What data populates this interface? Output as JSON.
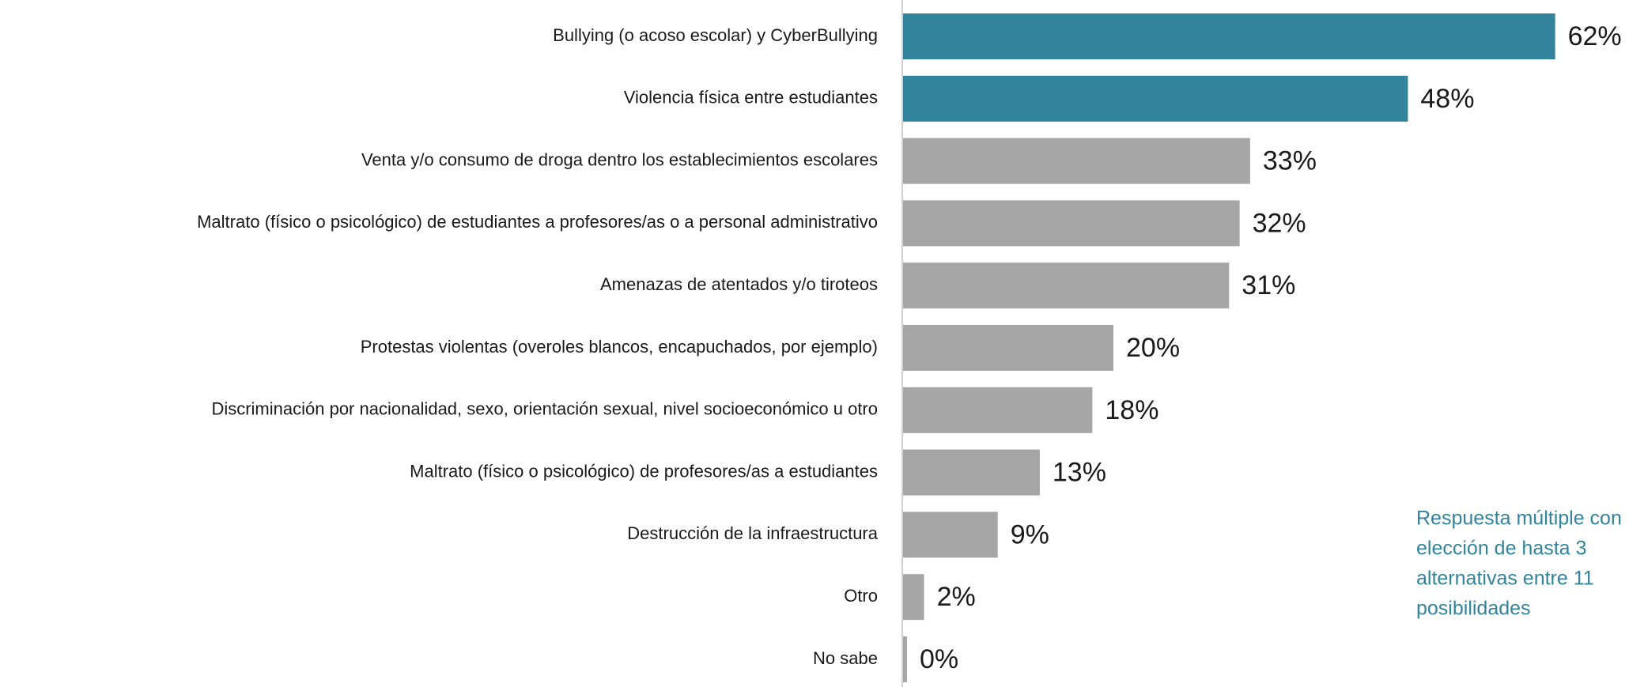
{
  "chart_data": {
    "type": "hbar",
    "categories": [
      "Bullying (o acoso escolar) y CyberBullying",
      "Violencia física entre estudiantes",
      "Venta y/o consumo de droga dentro los establecimientos escolares",
      "Maltrato (físico o psicológico) de estudiantes a profesores/as o a personal administrativo",
      "Amenazas de atentados y/o tiroteos",
      "Protestas violentas (overoles blancos, encapuchados, por ejemplo)",
      "Discriminación por nacionalidad, sexo, orientación sexual, nivel socioeconómico u otro",
      "Maltrato (físico o psicológico) de profesores/as a estudiantes",
      "Destrucción de la infraestructura",
      "Otro",
      "No sabe"
    ],
    "values": [
      62,
      48,
      33,
      32,
      31,
      20,
      18,
      13,
      9,
      2,
      0
    ],
    "value_labels": [
      "62%",
      "48%",
      "33%",
      "32%",
      "31%",
      "20%",
      "18%",
      "13%",
      "9%",
      "2%",
      "0%"
    ],
    "colors": [
      "#31849b",
      "#31849b",
      "#a6a6a6",
      "#a6a6a6",
      "#a6a6a6",
      "#a6a6a6",
      "#a6a6a6",
      "#a6a6a6",
      "#a6a6a6",
      "#a6a6a6",
      "#a6a6a6"
    ],
    "annotation": [
      "Respuesta múltiple con",
      "elección de hasta 3",
      "alternativas entre 11",
      "posibilidades"
    ]
  }
}
